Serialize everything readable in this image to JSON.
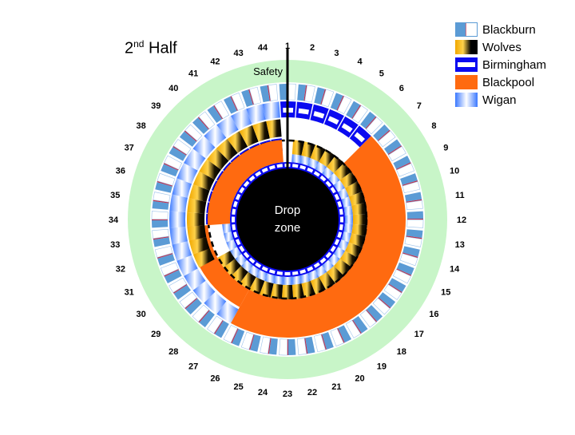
{
  "title": {
    "main": "2",
    "superscript": "nd",
    "rest": " Half"
  },
  "center_label": {
    "line1": "Drop",
    "line2": "zone"
  },
  "safety_label": "Safety",
  "positions": [
    "1",
    "2",
    "3",
    "4",
    "5",
    "6",
    "7",
    "8",
    "9",
    "10",
    "11",
    "12",
    "13",
    "14",
    "15",
    "16",
    "17",
    "18",
    "19",
    "20",
    "21",
    "22",
    "23",
    "24",
    "25",
    "26",
    "27",
    "28",
    "29",
    "30",
    "31",
    "32",
    "33",
    "34",
    "35",
    "36",
    "37",
    "38",
    "39",
    "40",
    "41",
    "42",
    "43",
    "44"
  ],
  "legend": [
    {
      "name": "Blackburn",
      "key": "blackburn"
    },
    {
      "name": "Wolves",
      "key": "wolves"
    },
    {
      "name": "Birmingham",
      "key": "birmingham"
    },
    {
      "name": "Blackpool",
      "key": "blackpool"
    },
    {
      "name": "Wigan",
      "key": "wigan"
    }
  ],
  "colors": {
    "outer_ring": "#c8f5c8",
    "blackburn_blue": "#5b9bd5",
    "blackburn_red": "#c0304b",
    "wolves_gold": "#f0a800",
    "birmingham_blue": "#0a0af0",
    "blackpool_orange": "#ff6a10",
    "wigan_blue": "#3a78ff",
    "drop_zone": "#000000"
  }
}
